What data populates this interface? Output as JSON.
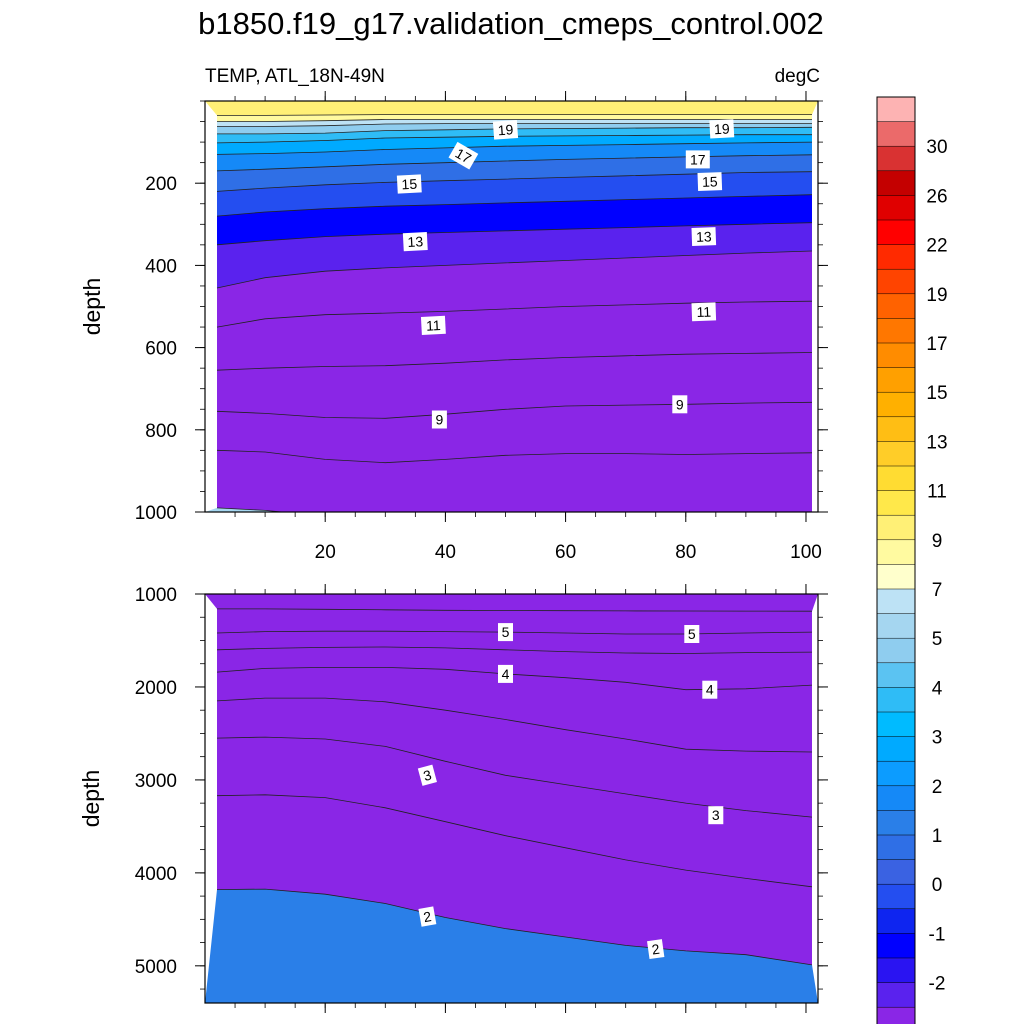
{
  "chart_data": {
    "type": "contour",
    "title": "b1850.f19_g17.validation_cmeps_control.002",
    "left_label": "TEMP, ATL_18N-49N",
    "right_label": "degC",
    "xlim": [
      0,
      102
    ],
    "x_ticks": [
      20,
      40,
      60,
      80,
      100
    ],
    "panels": [
      {
        "name": "upper",
        "ylabel": "depth",
        "ylim": [
          0,
          1000
        ],
        "y_ticks": [
          200,
          400,
          600,
          800,
          1000
        ],
        "top_depth": 5,
        "x_nodes": [
          2,
          10,
          20,
          30,
          40,
          50,
          60,
          70,
          80,
          90,
          101
        ],
        "bottom_fill": "#a5d6f0",
        "isotherms": [
          {
            "value": 22,
            "depth": [
              35,
              35,
              34,
              33,
              33,
              33,
              33,
              33,
              33,
              33,
              33
            ]
          },
          {
            "value": 21,
            "depth": [
              50,
              50,
              48,
              45,
              45,
              45,
              45,
              45,
              45,
              45,
              45
            ]
          },
          {
            "value": 20,
            "depth": [
              62,
              62,
              60,
              56,
              55,
              55,
              55,
              55,
              55,
              55,
              55
            ]
          },
          {
            "value": 19,
            "depth": [
              80,
              80,
              78,
              72,
              70,
              68,
              67,
              66,
              65,
              65,
              64
            ]
          },
          {
            "value": 18,
            "depth": [
              102,
              100,
              96,
              90,
              88,
              86,
              85,
              84,
              83,
              82,
              82
            ]
          },
          {
            "value": 17,
            "depth": [
              130,
              128,
              124,
              118,
              114,
              110,
              108,
              106,
              104,
              102,
              100
            ]
          },
          {
            "value": 16,
            "depth": [
              170,
              166,
              160,
              154,
              150,
              146,
              142,
              139,
              136,
              133,
              131
            ]
          },
          {
            "value": 15,
            "depth": [
              220,
              212,
              204,
              198,
              194,
              190,
              186,
              182,
              178,
              174,
              172
            ]
          },
          {
            "value": 14,
            "depth": [
              280,
              270,
              262,
              256,
              252,
              248,
              244,
              240,
              236,
              232,
              228
            ]
          },
          {
            "value": 13,
            "depth": [
              350,
              340,
              330,
              324,
              320,
              316,
              312,
              308,
              304,
              300,
              296
            ]
          },
          {
            "value": 12,
            "depth": [
              455,
              430,
              414,
              406,
              400,
              394,
              388,
              382,
              376,
              370,
              365
            ]
          },
          {
            "value": 11,
            "depth": [
              550,
              530,
              520,
              516,
              512,
              506,
              500,
              496,
              492,
              489,
              487
            ]
          },
          {
            "value": 10,
            "depth": [
              655,
              650,
              646,
              644,
              638,
              630,
              624,
              620,
              616,
              614,
              612
            ]
          },
          {
            "value": 9,
            "depth": [
              755,
              760,
              770,
              772,
              762,
              750,
              742,
              740,
              738,
              735,
              733
            ]
          },
          {
            "value": 8,
            "depth": [
              850,
              854,
              872,
              880,
              872,
              862,
              858,
              858,
              860,
              858,
              856
            ]
          },
          {
            "value": 7,
            "depth": [
              990,
              996,
              1010,
              1020,
              1020,
              1020,
              1020,
              1020,
              1020,
              1020,
              1020
            ]
          }
        ],
        "labels": [
          {
            "text": "19",
            "x": 50,
            "depth": 70,
            "angle": -4
          },
          {
            "text": "19",
            "x": 86,
            "depth": 68,
            "angle": -3
          },
          {
            "text": "17",
            "x": 43,
            "depth": 133,
            "angle": 30
          },
          {
            "text": "17",
            "x": 82,
            "depth": 142,
            "angle": 0
          },
          {
            "text": "15",
            "x": 34,
            "depth": 202,
            "angle": -3
          },
          {
            "text": "15",
            "x": 84,
            "depth": 196,
            "angle": -2
          },
          {
            "text": "13",
            "x": 35,
            "depth": 342,
            "angle": -3
          },
          {
            "text": "13",
            "x": 83,
            "depth": 330,
            "angle": -2
          },
          {
            "text": "11",
            "x": 38,
            "depth": 546,
            "angle": -3
          },
          {
            "text": "11",
            "x": 83,
            "depth": 513,
            "angle": -2
          },
          {
            "text": "9",
            "x": 39,
            "depth": 775,
            "angle": 0
          },
          {
            "text": "9",
            "x": 79,
            "depth": 738,
            "angle": 0
          }
        ]
      },
      {
        "name": "lower",
        "ylabel": "depth",
        "ylim": [
          1000,
          5400
        ],
        "y_ticks": [
          1000,
          2000,
          3000,
          4000,
          5000
        ],
        "x_nodes": [
          2,
          10,
          20,
          30,
          40,
          50,
          60,
          70,
          80,
          90,
          101
        ],
        "bottom_fill": "#2a7fe8",
        "isotherms": [
          {
            "value": 6,
            "depth": [
              1160,
              1160,
              1165,
              1170,
              1175,
              1178,
              1180,
              1182,
              1183,
              1184,
              1185
            ]
          },
          {
            "value": 5,
            "depth": [
              1420,
              1405,
              1400,
              1400,
              1405,
              1410,
              1420,
              1430,
              1430,
              1420,
              1410
            ]
          },
          {
            "value": 4.5,
            "depth": [
              1600,
              1585,
              1575,
              1570,
              1580,
              1600,
              1620,
              1635,
              1640,
              1630,
              1625
            ]
          },
          {
            "value": 4,
            "depth": [
              1840,
              1800,
              1790,
              1790,
              1810,
              1860,
              1900,
              1950,
              2030,
              2020,
              1980
            ]
          },
          {
            "value": 3.5,
            "depth": [
              2150,
              2120,
              2120,
              2160,
              2250,
              2350,
              2460,
              2560,
              2670,
              2690,
              2700
            ]
          },
          {
            "value": 3,
            "depth": [
              2550,
              2540,
              2560,
              2640,
              2800,
              2950,
              3050,
              3150,
              3250,
              3330,
              3400
            ]
          },
          {
            "value": 2.5,
            "depth": [
              3170,
              3160,
              3190,
              3300,
              3450,
              3600,
              3730,
              3860,
              3970,
              4060,
              4150
            ]
          },
          {
            "value": 2,
            "depth": [
              4180,
              4175,
              4230,
              4330,
              4480,
              4600,
              4690,
              4780,
              4840,
              4880,
              4990
            ]
          }
        ],
        "labels": [
          {
            "text": "5",
            "x": 50,
            "depth": 1410,
            "angle": 0
          },
          {
            "text": "5",
            "x": 81,
            "depth": 1430,
            "angle": 0
          },
          {
            "text": "4",
            "x": 50,
            "depth": 1860,
            "angle": 0
          },
          {
            "text": "4",
            "x": 84,
            "depth": 2030,
            "angle": 0
          },
          {
            "text": "3",
            "x": 37,
            "depth": 2950,
            "angle": -15
          },
          {
            "text": "3",
            "x": 85,
            "depth": 3380,
            "angle": 0
          },
          {
            "text": "2",
            "x": 37,
            "depth": 4470,
            "angle": -10
          },
          {
            "text": "2",
            "x": 75,
            "depth": 4820,
            "angle": -8
          }
        ]
      }
    ],
    "colorbar": {
      "labels": [
        "30",
        "26",
        "22",
        "19",
        "17",
        "15",
        "13",
        "11",
        "9",
        "7",
        "5",
        "4",
        "3",
        "2",
        "1",
        "0",
        "-1",
        "-2"
      ],
      "colors": [
        "#fdb3b3",
        "#eb6a6a",
        "#d93232",
        "#c40000",
        "#e00000",
        "#ff0000",
        "#ff2a00",
        "#ff4400",
        "#ff6200",
        "#ff7700",
        "#ff8c00",
        "#ffa000",
        "#ffb000",
        "#ffbe14",
        "#ffcd28",
        "#ffdc32",
        "#ffe84a",
        "#fff076",
        "#fffaa0",
        "#ffffcc",
        "#bde2f5",
        "#a5d6f0",
        "#8fcdef",
        "#5bc3f2",
        "#2fbcf6",
        "#00bbff",
        "#00aaff",
        "#0c9cff",
        "#1589f7",
        "#2a7fe8",
        "#2f6fe6",
        "#3a62e2",
        "#244ef0",
        "#0e25f0",
        "#0000ff",
        "#2a14f2",
        "#5a22ee",
        "#8a26e6"
      ]
    }
  }
}
